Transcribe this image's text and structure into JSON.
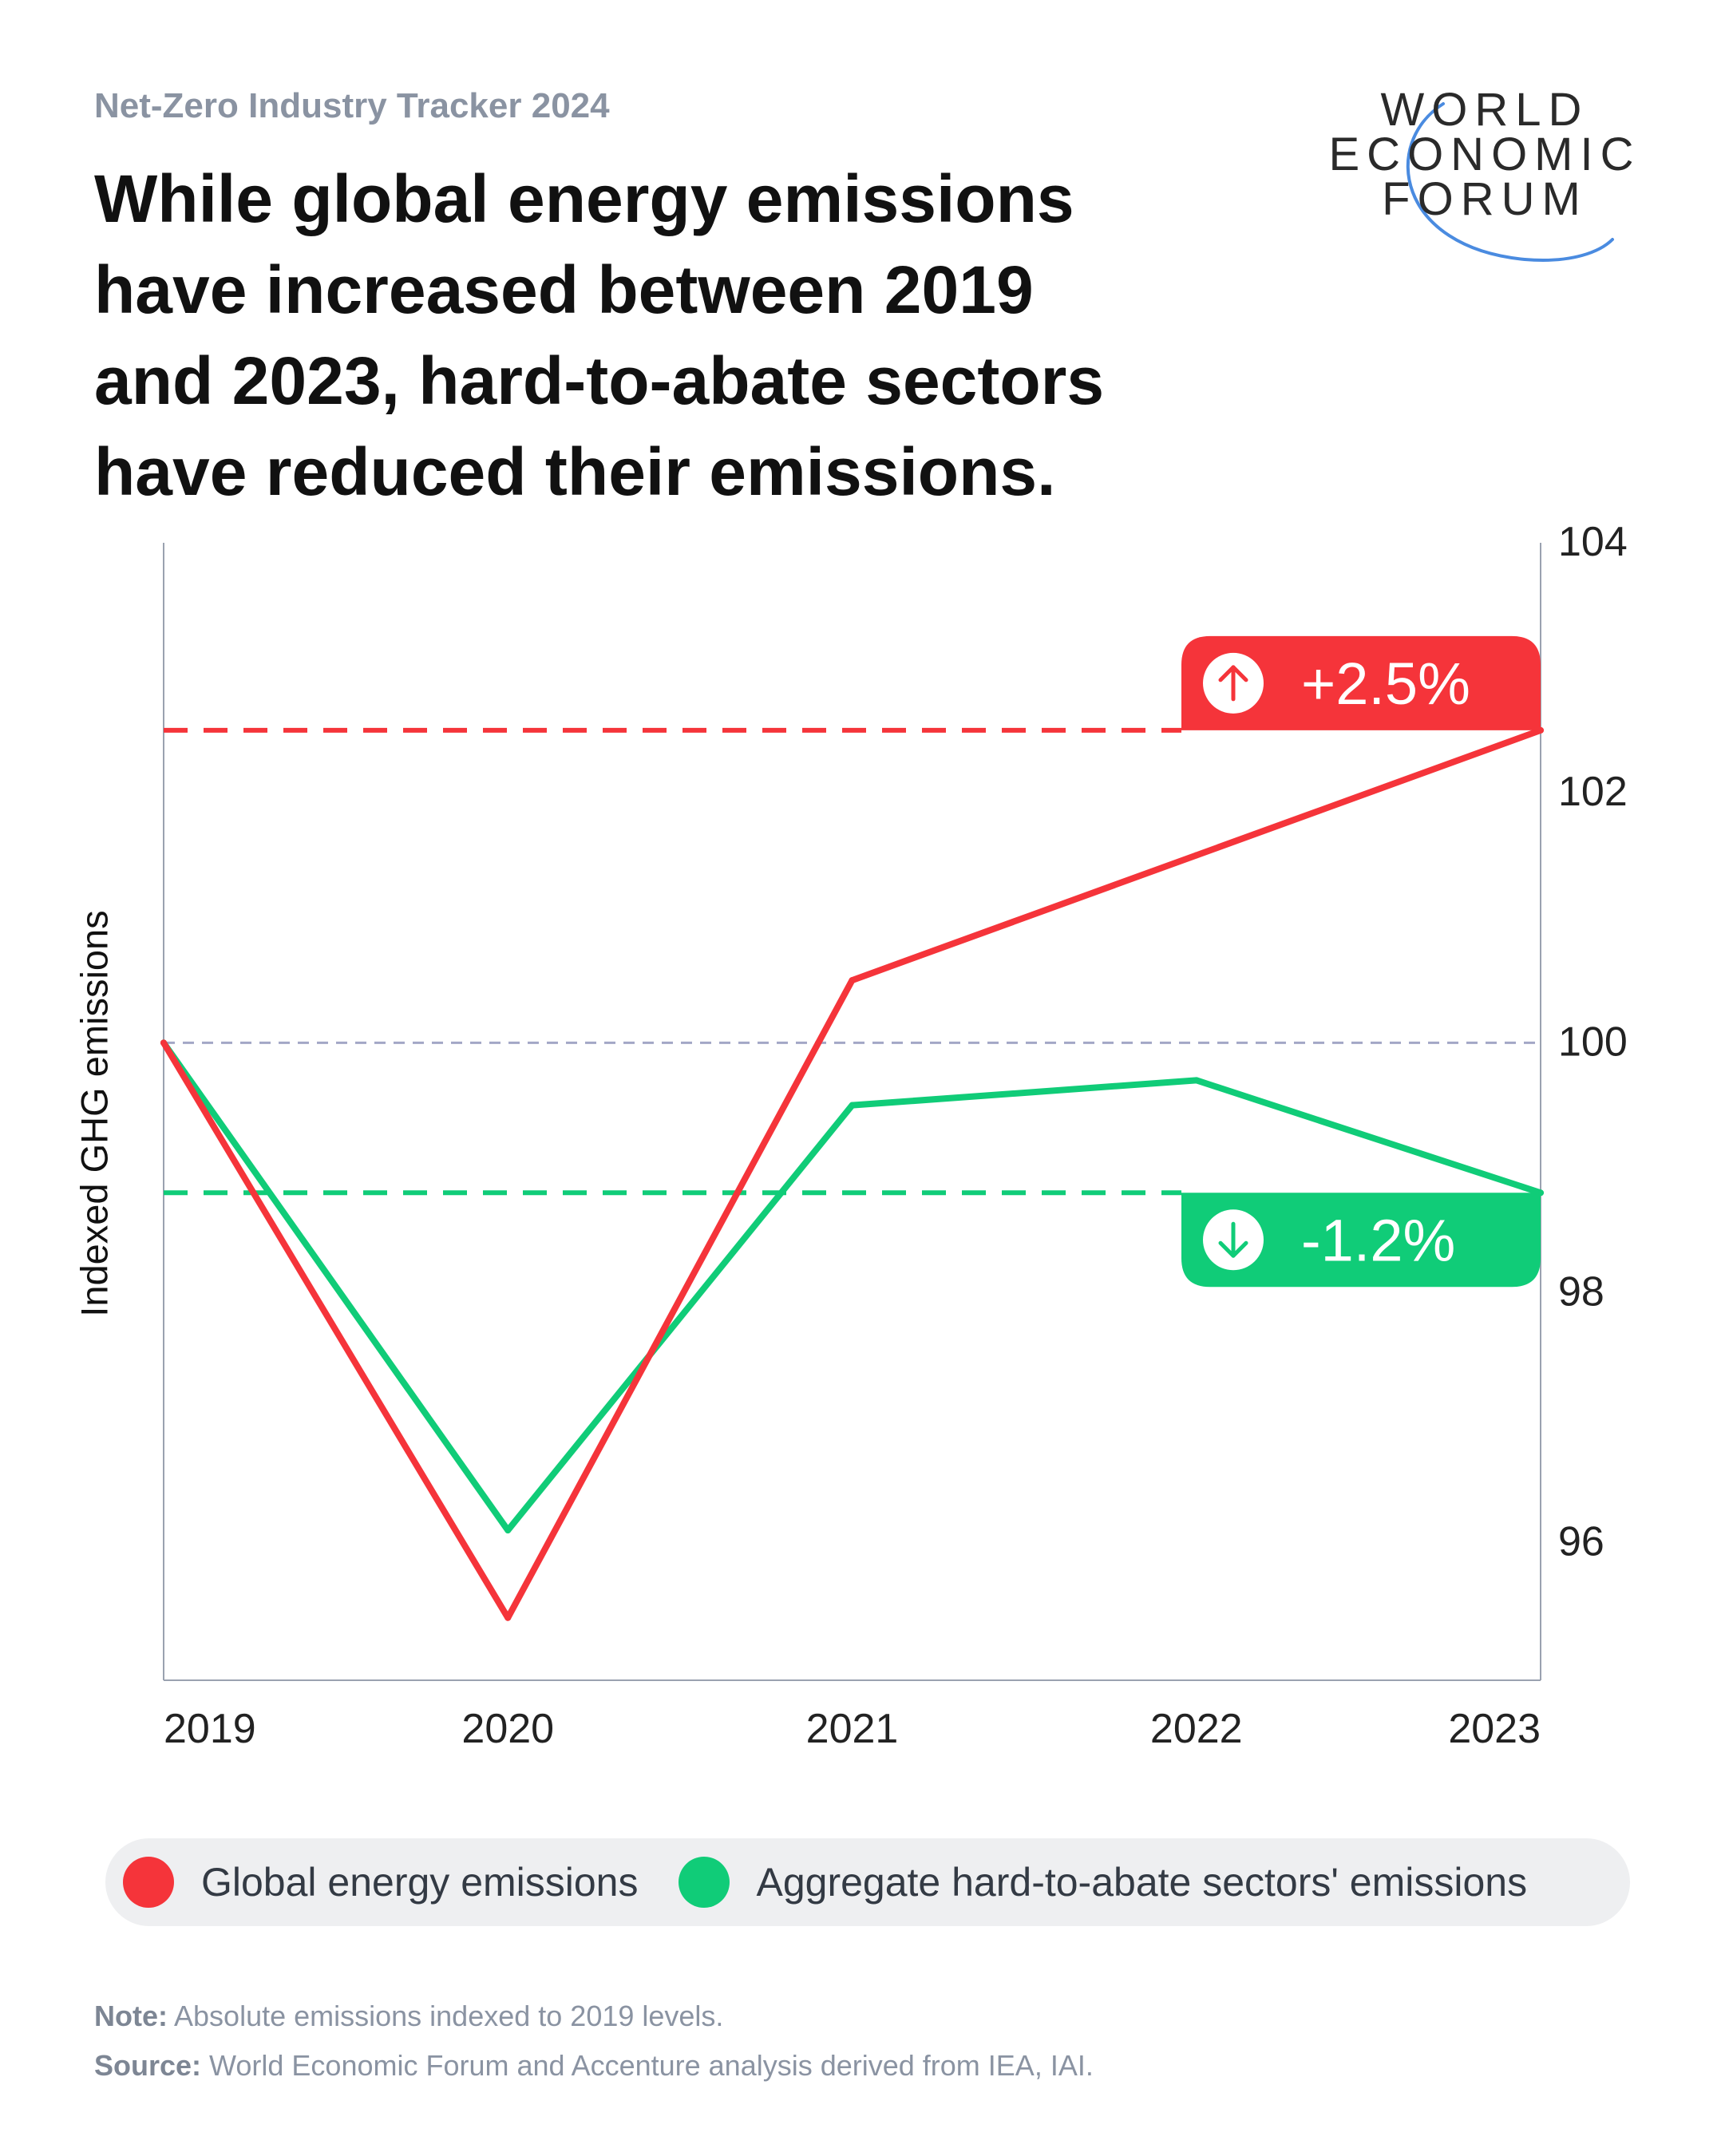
{
  "header": {
    "kicker": "Net-Zero Industry Tracker 2024",
    "title_lines": [
      "While global energy emissions",
      "have increased between 2019",
      "and 2023, hard-to-abate sectors",
      "have reduced their emissions."
    ]
  },
  "logo": {
    "lines": [
      "WORLD",
      "ECONOMIC",
      "FORUM"
    ]
  },
  "colors": {
    "red": "#f5343a",
    "green": "#10cc78",
    "axis": "#9aa2b0",
    "baseline": "#a3a7c6"
  },
  "chart_data": {
    "type": "line",
    "title": "While global energy emissions have increased between 2019 and 2023, hard-to-abate sectors have reduced their emissions.",
    "xlabel": "",
    "ylabel": "Indexed GHG emissions",
    "x": [
      "2019",
      "2020",
      "2021",
      "2022",
      "2023"
    ],
    "ylim": [
      94.9,
      104
    ],
    "yticks": [
      96,
      98,
      100,
      102,
      104
    ],
    "baseline": 100,
    "series": [
      {
        "name": "Global energy emissions",
        "color": "#f5343a",
        "values": [
          100,
          95.4,
          100.5,
          101.5,
          102.5
        ]
      },
      {
        "name": "Aggregate hard-to-abate sectors' emissions",
        "color": "#10cc78",
        "values": [
          100,
          96.1,
          99.5,
          99.7,
          98.8
        ]
      }
    ],
    "annotations": [
      {
        "label": "+2.5%",
        "series": "Global energy emissions",
        "value": 102.5,
        "direction": "up"
      },
      {
        "label": "-1.2%",
        "series": "Aggregate hard-to-abate sectors' emissions",
        "value": 98.8,
        "direction": "down"
      }
    ]
  },
  "legend": {
    "items": [
      {
        "label": "Global energy emissions",
        "color": "#f5343a"
      },
      {
        "label": "Aggregate hard-to-abate sectors' emissions",
        "color": "#10cc78"
      }
    ]
  },
  "footer": {
    "note_label": "Note:",
    "note_text": " Absolute emissions indexed to 2019 levels.",
    "source_label": "Source:",
    "source_text": " World Economic Forum and Accenture analysis derived from IEA, IAI."
  }
}
